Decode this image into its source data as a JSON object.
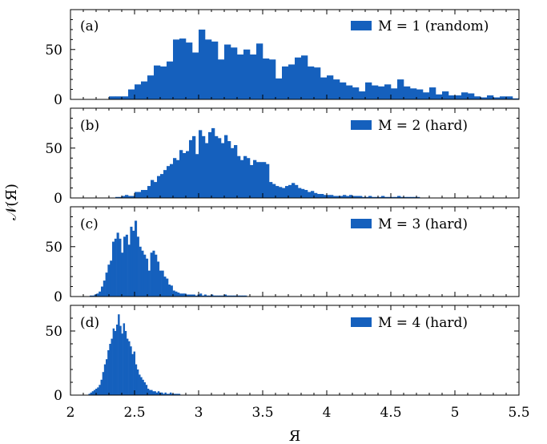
{
  "chart_data": {
    "type": "bar",
    "layout": "4 stacked histogram panels sharing the x-axis",
    "xlabel": "Я",
    "ylabel": "𝒩(Я)",
    "xlim": [
      2,
      5.5
    ],
    "x_ticks": [
      "2",
      "2.5",
      "3",
      "3.5",
      "4",
      "4.5",
      "5",
      "5.5"
    ],
    "bar_color": "#1560bd",
    "legend_position": "top-right",
    "panels": [
      {
        "label": "(a)",
        "legend": "M = 1 (random)",
        "ylim": [
          0,
          90
        ],
        "y_ticks": [
          "0",
          "50"
        ],
        "bin_width": 0.05,
        "x": [
          2.3,
          2.35,
          2.4,
          2.45,
          2.5,
          2.55,
          2.6,
          2.65,
          2.7,
          2.75,
          2.8,
          2.85,
          2.9,
          2.95,
          3.0,
          3.05,
          3.1,
          3.15,
          3.2,
          3.25,
          3.3,
          3.35,
          3.4,
          3.45,
          3.5,
          3.55,
          3.6,
          3.65,
          3.7,
          3.75,
          3.8,
          3.85,
          3.9,
          3.95,
          4.0,
          4.05,
          4.1,
          4.15,
          4.2,
          4.25,
          4.3,
          4.35,
          4.4,
          4.45,
          4.5,
          4.55,
          4.6,
          4.65,
          4.7,
          4.75,
          4.8,
          4.85,
          4.9,
          4.95,
          5.0,
          5.05,
          5.1,
          5.15,
          5.2,
          5.25,
          5.3,
          5.35,
          5.4,
          5.45
        ],
        "values": [
          3,
          3,
          3,
          10,
          15,
          18,
          24,
          34,
          33,
          38,
          60,
          61,
          57,
          47,
          70,
          60,
          58,
          40,
          55,
          52,
          45,
          50,
          45,
          56,
          41,
          40,
          21,
          33,
          35,
          42,
          44,
          33,
          32,
          22,
          24,
          20,
          17,
          14,
          12,
          8,
          17,
          14,
          13,
          15,
          11,
          20,
          13,
          11,
          10,
          7,
          12,
          5,
          8,
          4,
          4,
          7,
          6,
          3,
          2,
          4,
          2,
          3,
          3,
          1
        ]
      },
      {
        "label": "(b)",
        "legend": "M = 2 (hard)",
        "ylim": [
          0,
          90
        ],
        "y_ticks": [
          "0",
          "50"
        ],
        "bin_width": 0.025,
        "x": [
          2.35,
          2.375,
          2.4,
          2.425,
          2.45,
          2.475,
          2.5,
          2.525,
          2.55,
          2.575,
          2.6,
          2.625,
          2.65,
          2.675,
          2.7,
          2.725,
          2.75,
          2.775,
          2.8,
          2.825,
          2.85,
          2.875,
          2.9,
          2.925,
          2.95,
          2.975,
          3.0,
          3.025,
          3.05,
          3.075,
          3.1,
          3.125,
          3.15,
          3.175,
          3.2,
          3.225,
          3.25,
          3.275,
          3.3,
          3.325,
          3.35,
          3.375,
          3.4,
          3.425,
          3.45,
          3.475,
          3.5,
          3.525,
          3.55,
          3.575,
          3.6,
          3.625,
          3.65,
          3.675,
          3.7,
          3.725,
          3.75,
          3.775,
          3.8,
          3.825,
          3.85,
          3.875,
          3.9,
          3.925,
          3.95,
          3.975,
          4.0,
          4.025,
          4.05,
          4.075,
          4.1,
          4.125,
          4.15,
          4.175,
          4.2,
          4.225,
          4.25,
          4.275,
          4.3,
          4.325,
          4.35,
          4.375,
          4.4,
          4.425,
          4.45,
          4.475,
          4.5,
          4.525,
          4.55,
          4.575,
          4.6,
          4.625,
          4.65,
          4.675,
          4.7
        ],
        "values": [
          1,
          1,
          2,
          3,
          2,
          2,
          6,
          6,
          8,
          8,
          12,
          18,
          16,
          22,
          24,
          28,
          32,
          34,
          40,
          38,
          48,
          45,
          47,
          58,
          62,
          44,
          68,
          62,
          55,
          66,
          70,
          62,
          60,
          55,
          63,
          57,
          50,
          53,
          42,
          38,
          42,
          40,
          33,
          38,
          36,
          36,
          36,
          34,
          16,
          14,
          12,
          11,
          10,
          12,
          13,
          15,
          13,
          10,
          9,
          8,
          6,
          7,
          5,
          4,
          4,
          3,
          3,
          3,
          2,
          2,
          2,
          3,
          2,
          3,
          2,
          2,
          2,
          1,
          1,
          2,
          1,
          1,
          1,
          2,
          1,
          1,
          1,
          1,
          2,
          1,
          1,
          1,
          1,
          1,
          1
        ]
      },
      {
        "label": "(c)",
        "legend": "M = 3 (hard)",
        "ylim": [
          0,
          90
        ],
        "y_ticks": [
          "0",
          "50"
        ],
        "bin_width": 0.0175,
        "x": [
          2.15,
          2.1675,
          2.185,
          2.2025,
          2.22,
          2.2375,
          2.255,
          2.2725,
          2.29,
          2.3075,
          2.325,
          2.3425,
          2.36,
          2.3775,
          2.395,
          2.4125,
          2.43,
          2.4475,
          2.465,
          2.4825,
          2.5,
          2.5175,
          2.535,
          2.5525,
          2.57,
          2.5875,
          2.605,
          2.6225,
          2.64,
          2.6575,
          2.675,
          2.6925,
          2.71,
          2.7275,
          2.745,
          2.7625,
          2.78,
          2.7975,
          2.815,
          2.8325,
          2.85,
          2.8675,
          2.885,
          2.9025,
          2.92,
          2.9375,
          2.955,
          2.9725,
          2.99,
          3.0075,
          3.025,
          3.0425,
          3.06,
          3.0775,
          3.095,
          3.1125,
          3.13,
          3.1475,
          3.165,
          3.1825,
          3.2,
          3.2175,
          3.235,
          3.2525,
          3.27,
          3.2875,
          3.305,
          3.3225,
          3.34,
          3.3575
        ],
        "values": [
          1,
          1,
          2,
          3,
          5,
          10,
          16,
          24,
          32,
          36,
          55,
          58,
          64,
          58,
          44,
          60,
          62,
          52,
          70,
          66,
          76,
          60,
          50,
          46,
          42,
          38,
          26,
          44,
          46,
          42,
          35,
          26,
          26,
          20,
          18,
          12,
          11,
          6,
          5,
          4,
          3,
          3,
          3,
          2,
          2,
          2,
          2,
          1,
          2,
          3,
          1,
          2,
          1,
          1,
          2,
          1,
          1,
          1,
          1,
          1,
          2,
          1,
          1,
          1,
          1,
          1,
          1,
          1,
          1,
          1
        ]
      },
      {
        "label": "(d)",
        "legend": "M = 4 (hard)",
        "ylim": [
          0,
          70
        ],
        "y_ticks": [
          "0",
          "50"
        ],
        "bin_width": 0.0135,
        "x": [
          2.14,
          2.1535,
          2.167,
          2.1805,
          2.194,
          2.2075,
          2.221,
          2.2345,
          2.248,
          2.2615,
          2.275,
          2.2885,
          2.302,
          2.3155,
          2.329,
          2.3425,
          2.356,
          2.3695,
          2.383,
          2.3965,
          2.41,
          2.4235,
          2.437,
          2.4505,
          2.464,
          2.4775,
          2.491,
          2.5045,
          2.518,
          2.5315,
          2.545,
          2.5585,
          2.572,
          2.5855,
          2.599,
          2.6125,
          2.626,
          2.6395,
          2.653,
          2.6665,
          2.68,
          2.6935,
          2.707,
          2.7205,
          2.734,
          2.7475,
          2.761,
          2.7745,
          2.788,
          2.8015,
          2.815,
          2.8285,
          2.842
        ],
        "values": [
          1,
          2,
          3,
          4,
          5,
          6,
          8,
          12,
          18,
          24,
          28,
          35,
          40,
          44,
          52,
          50,
          55,
          63,
          54,
          48,
          56,
          50,
          44,
          42,
          38,
          32,
          34,
          24,
          20,
          16,
          14,
          12,
          10,
          8,
          5,
          4,
          4,
          3,
          3,
          2,
          3,
          2,
          2,
          1,
          2,
          1,
          1,
          2,
          1,
          1,
          1,
          1,
          1
        ]
      }
    ]
  }
}
